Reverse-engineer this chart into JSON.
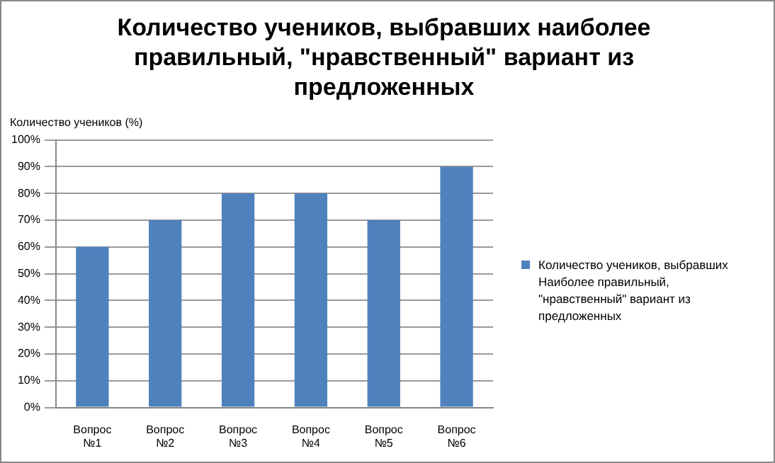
{
  "chart_data": {
    "type": "bar",
    "title": "Количество учеников, выбравших наиболее правильный, \"нравственный\" вариант из предложенных",
    "ylabel": "Количество учеников (%)",
    "categories": [
      "Вопрос №1",
      "Вопрос №2",
      "Вопрос №3",
      "Вопрос №4",
      "Вопрос №5",
      "Вопрос №6"
    ],
    "series": [
      {
        "name": "Количество учеников, выбравших Наиболее правильный, \"нравственный\" вариант из предложенных",
        "color": "#4f81bd",
        "values": [
          60,
          70,
          80,
          80,
          70,
          90
        ]
      }
    ],
    "ylim": [
      0,
      100
    ],
    "yticks": [
      {
        "value": 0,
        "label": "0%"
      },
      {
        "value": 10,
        "label": "10%"
      },
      {
        "value": 20,
        "label": "20%"
      },
      {
        "value": 30,
        "label": "30%"
      },
      {
        "value": 40,
        "label": "40%"
      },
      {
        "value": 50,
        "label": "50%"
      },
      {
        "value": 60,
        "label": "60%"
      },
      {
        "value": 70,
        "label": "70%"
      },
      {
        "value": 80,
        "label": "80%"
      },
      {
        "value": 90,
        "label": "90%"
      },
      {
        "value": 100,
        "label": "100%"
      }
    ],
    "grid": "y",
    "legend": "right"
  }
}
